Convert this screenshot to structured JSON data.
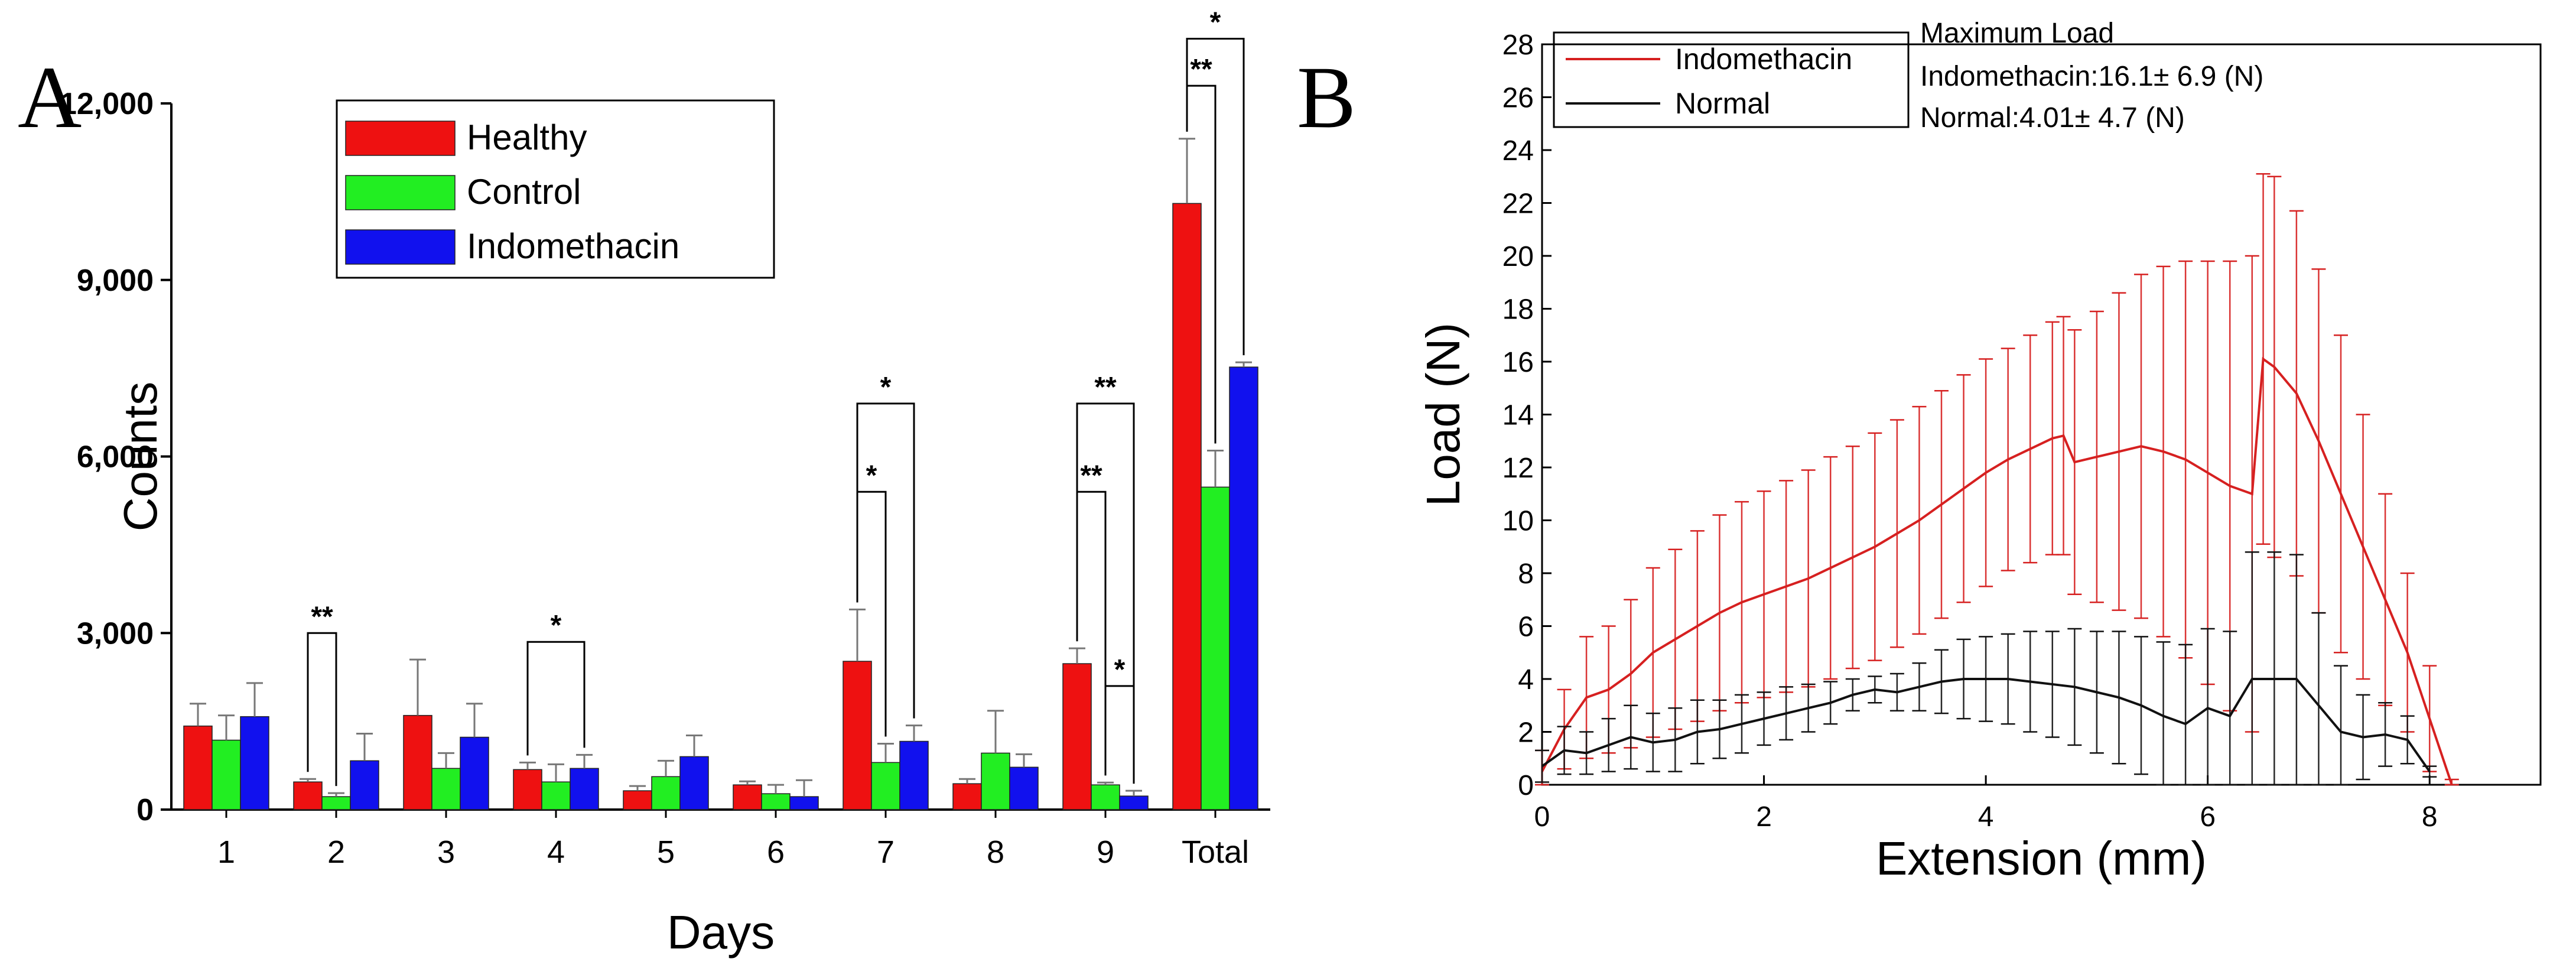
{
  "chart_data": [
    {
      "panel": "A",
      "type": "bar",
      "xlabel": "Days",
      "ylabel": "Counts",
      "ylim": [
        0,
        12000
      ],
      "yticks": [
        0,
        3000,
        6000,
        9000,
        12000
      ],
      "ytick_labels": [
        "0",
        "3,000",
        "6,000",
        "9,000",
        "12,000"
      ],
      "categories": [
        "1",
        "2",
        "3",
        "4",
        "5",
        "6",
        "7",
        "8",
        "9",
        "Total"
      ],
      "legend_position": "top-left",
      "series": [
        {
          "name": "Healthy",
          "color": "#ee1111",
          "values": [
            1420,
            470,
            1600,
            680,
            320,
            420,
            2520,
            440,
            2480,
            10300
          ],
          "errors": [
            380,
            50,
            950,
            120,
            80,
            60,
            880,
            80,
            260,
            1100
          ]
        },
        {
          "name": "Control",
          "color": "#22ee22",
          "values": [
            1180,
            220,
            700,
            470,
            560,
            270,
            800,
            960,
            420,
            5480
          ],
          "errors": [
            420,
            60,
            260,
            300,
            270,
            150,
            320,
            720,
            40,
            620
          ]
        },
        {
          "name": "Indomethacin",
          "color": "#1111ee",
          "values": [
            1580,
            830,
            1230,
            700,
            900,
            220,
            1160,
            720,
            230,
            7520
          ],
          "errors": [
            570,
            460,
            570,
            230,
            360,
            280,
            270,
            220,
            90,
            80
          ]
        }
      ],
      "annotations": [
        {
          "text": "**",
          "from_category": 1,
          "from_series": 0,
          "to_category": 1,
          "to_series": 1,
          "level": 3000
        },
        {
          "text": "*",
          "from_category": 3,
          "from_series": 0,
          "to_category": 3,
          "to_series": 2,
          "level": 2850
        },
        {
          "text": "*",
          "from_category": 6,
          "from_series": 0,
          "to_category": 6,
          "to_series": 1,
          "level": 5400
        },
        {
          "text": "*",
          "from_category": 6,
          "from_series": 0,
          "to_category": 6,
          "to_series": 2,
          "level": 6900
        },
        {
          "text": "**",
          "from_category": 8,
          "from_series": 0,
          "to_category": 8,
          "to_series": 1,
          "level": 5400
        },
        {
          "text": "**",
          "from_category": 8,
          "from_series": 0,
          "to_category": 8,
          "to_series": 2,
          "level": 6900
        },
        {
          "text": "*",
          "from_category": 8,
          "from_series": 1,
          "to_category": 8,
          "to_series": 2,
          "level": 2100
        },
        {
          "text": "**",
          "from_category": 9,
          "from_series": 0,
          "to_category": 9,
          "to_series": 1,
          "level": 12300
        },
        {
          "text": "*",
          "from_category": 9,
          "from_series": 0,
          "to_category": 9,
          "to_series": 2,
          "level": 13100
        }
      ]
    },
    {
      "panel": "B",
      "type": "line",
      "xlabel": "Extension (mm)",
      "ylabel": "Load (N)",
      "xlim": [
        0,
        9
      ],
      "ylim": [
        0,
        28
      ],
      "xticks": [
        0,
        2,
        4,
        6,
        8
      ],
      "yticks": [
        0,
        2,
        4,
        6,
        8,
        10,
        12,
        14,
        16,
        18,
        20,
        22,
        24,
        26,
        28
      ],
      "legend_position": "top-left",
      "info_lines": [
        "Maximum Load",
        "Indomethacin:16.1±  6.9 (N)",
        "Normal:4.01±  4.7 (N)"
      ],
      "series": [
        {
          "name": "Indomethacin",
          "color": "#d62020",
          "x": [
            0.0,
            0.2,
            0.4,
            0.6,
            0.8,
            1.0,
            1.2,
            1.4,
            1.6,
            1.8,
            2.0,
            2.2,
            2.4,
            2.6,
            2.8,
            3.0,
            3.2,
            3.4,
            3.6,
            3.8,
            4.0,
            4.2,
            4.4,
            4.6,
            4.7,
            4.8,
            5.0,
            5.2,
            5.4,
            5.6,
            5.8,
            6.0,
            6.2,
            6.4,
            6.5,
            6.6,
            6.8,
            7.0,
            7.2,
            7.4,
            7.6,
            7.8,
            8.0,
            8.2
          ],
          "values": [
            0.5,
            2.1,
            3.3,
            3.6,
            4.2,
            5.0,
            5.5,
            6.0,
            6.5,
            6.9,
            7.2,
            7.5,
            7.8,
            8.2,
            8.6,
            9.0,
            9.5,
            10.0,
            10.6,
            11.2,
            11.8,
            12.3,
            12.7,
            13.1,
            13.2,
            12.2,
            12.4,
            12.6,
            12.8,
            12.6,
            12.3,
            11.8,
            11.3,
            11.0,
            16.1,
            15.8,
            14.8,
            13.0,
            11.0,
            9.0,
            7.0,
            5.0,
            2.5,
            0.0
          ],
          "errors": [
            0.8,
            1.5,
            2.3,
            2.4,
            2.8,
            3.2,
            3.4,
            3.6,
            3.7,
            3.8,
            3.9,
            4.0,
            4.1,
            4.2,
            4.2,
            4.3,
            4.3,
            4.3,
            4.3,
            4.3,
            4.3,
            4.2,
            4.3,
            4.4,
            4.5,
            5.0,
            5.5,
            6.0,
            6.5,
            7.0,
            7.5,
            8.0,
            8.5,
            9.0,
            7.0,
            7.2,
            6.9,
            6.5,
            6.0,
            5.0,
            4.0,
            3.0,
            2.0,
            0.2
          ]
        },
        {
          "name": "Normal",
          "color": "#111111",
          "x": [
            0.0,
            0.2,
            0.4,
            0.6,
            0.8,
            1.0,
            1.2,
            1.4,
            1.6,
            1.8,
            2.0,
            2.2,
            2.4,
            2.6,
            2.8,
            3.0,
            3.2,
            3.4,
            3.6,
            3.8,
            4.0,
            4.2,
            4.4,
            4.6,
            4.8,
            5.0,
            5.2,
            5.4,
            5.6,
            5.8,
            6.0,
            6.2,
            6.4,
            6.6,
            6.8,
            7.0,
            7.2,
            7.4,
            7.6,
            7.8,
            8.0
          ],
          "values": [
            0.7,
            1.3,
            1.2,
            1.5,
            1.8,
            1.6,
            1.7,
            2.0,
            2.1,
            2.3,
            2.5,
            2.7,
            2.9,
            3.1,
            3.4,
            3.6,
            3.5,
            3.7,
            3.9,
            4.0,
            4.0,
            4.0,
            3.9,
            3.8,
            3.7,
            3.5,
            3.3,
            3.0,
            2.6,
            2.3,
            2.9,
            2.6,
            4.0,
            4.0,
            4.0,
            3.0,
            2.0,
            1.8,
            1.9,
            1.7,
            0.5
          ],
          "errors": [
            0.6,
            0.9,
            0.8,
            1.0,
            1.2,
            1.1,
            1.2,
            1.2,
            1.1,
            1.1,
            1.0,
            1.0,
            0.9,
            0.8,
            0.6,
            0.5,
            0.7,
            0.9,
            1.2,
            1.5,
            1.6,
            1.7,
            1.9,
            2.0,
            2.2,
            2.3,
            2.5,
            2.6,
            2.8,
            3.0,
            3.0,
            3.2,
            4.8,
            4.8,
            4.7,
            3.5,
            2.5,
            1.6,
            1.2,
            0.9,
            0.2
          ]
        }
      ]
    }
  ],
  "panels": {
    "a_label": "A",
    "b_label": "B"
  }
}
